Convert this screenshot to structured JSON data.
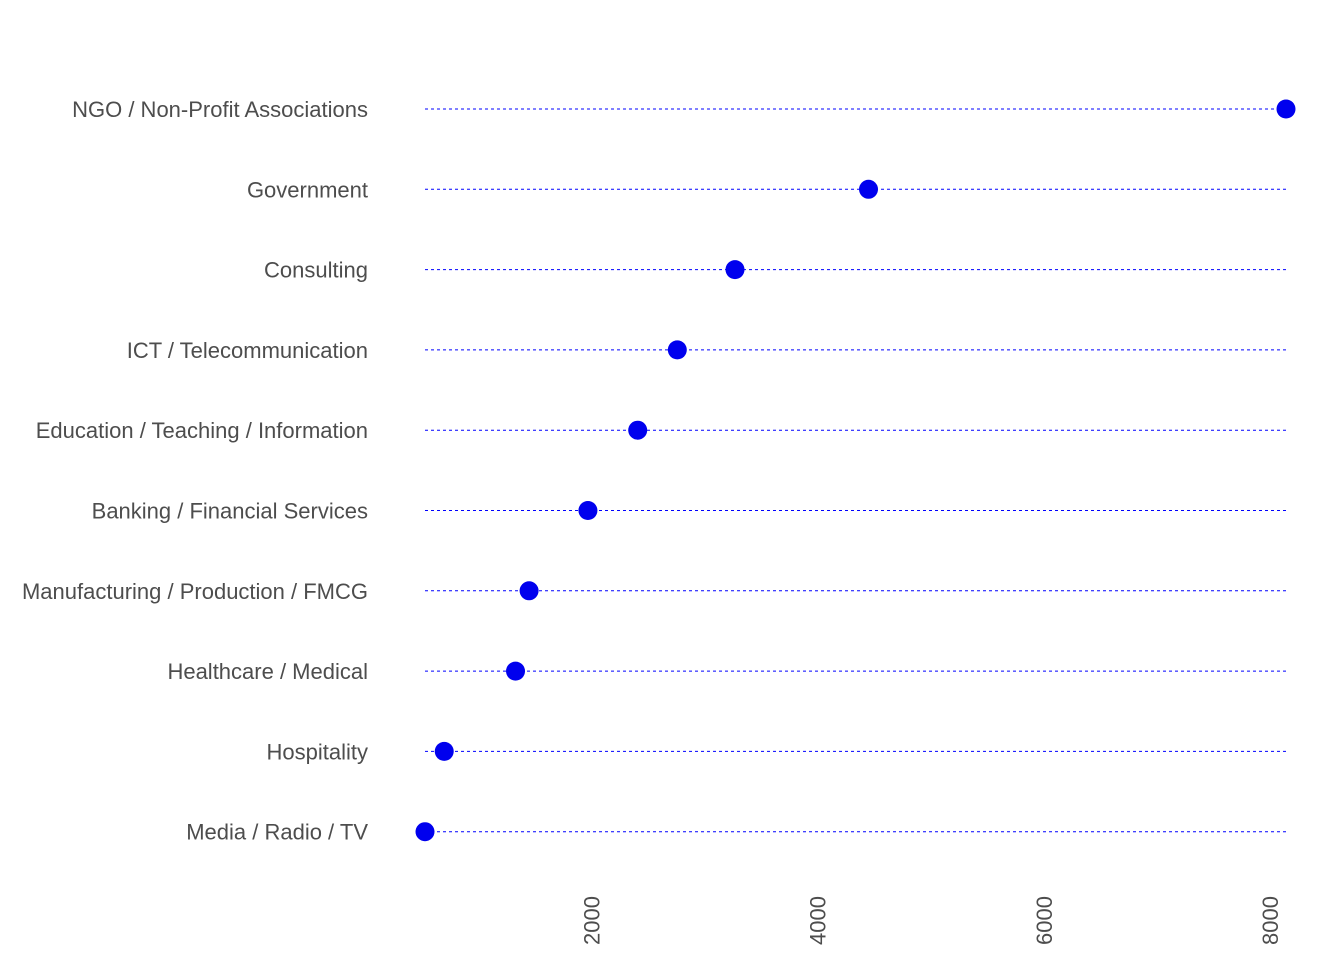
{
  "chart_data": {
    "type": "scatter",
    "style": "dot-plot",
    "title": "",
    "xlabel": "",
    "ylabel": "",
    "categories": [
      "NGO / Non-Profit Associations",
      "Government",
      "Consulting",
      "ICT / Telecommunication",
      "Education / Teaching / Information",
      "Banking / Financial Services",
      "Manufacturing / Production / FMCG",
      "Healthcare / Medical",
      "Hospitality",
      "Media / Radio / TV"
    ],
    "values": [
      8140,
      4450,
      3270,
      2760,
      2410,
      1970,
      1450,
      1330,
      700,
      530
    ],
    "xlim": [
      530,
      8140
    ],
    "xticks": [
      2000,
      4000,
      6000,
      8000
    ],
    "xtick_labels": [
      "2000",
      "4000",
      "6000",
      "8000"
    ],
    "grid": false,
    "legend": "none",
    "colors": {
      "point": "#0000ee",
      "guide_line": "#0000ff",
      "text": "#4d4d4d"
    }
  }
}
